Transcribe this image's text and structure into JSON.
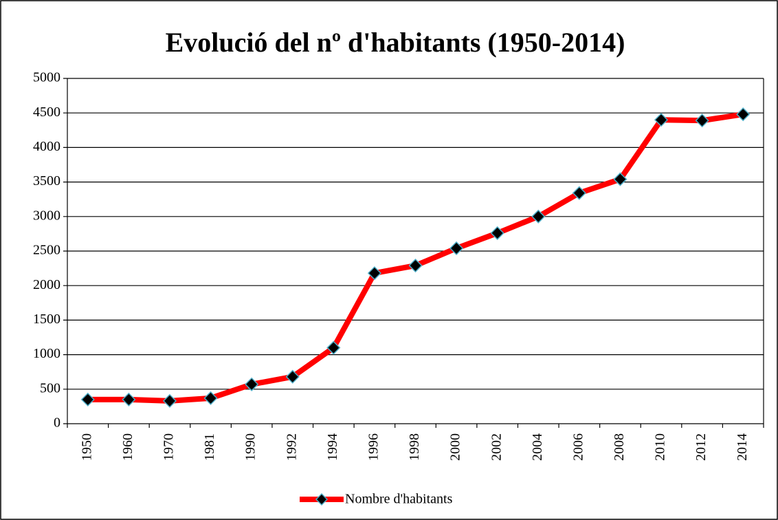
{
  "chart_data": {
    "type": "line",
    "title": "Evolució del nº d'habitants (1950-2014)",
    "categories": [
      "1950",
      "1960",
      "1970",
      "1981",
      "1990",
      "1992",
      "1994",
      "1996",
      "1998",
      "2000",
      "2002",
      "2004",
      "2006",
      "2008",
      "2010",
      "2012",
      "2014"
    ],
    "series": [
      {
        "name": "Nombre d'habitants",
        "color": "#ff0000",
        "marker_color": "#000000",
        "marker_edge": "#4bacc6",
        "values": [
          350,
          350,
          330,
          370,
          570,
          680,
          1100,
          2180,
          2290,
          2540,
          2760,
          3000,
          3340,
          3540,
          4400,
          4390,
          4480
        ]
      }
    ],
    "ylim": [
      0,
      5000
    ],
    "yticks": [
      0,
      500,
      1000,
      1500,
      2000,
      2500,
      3000,
      3500,
      4000,
      4500,
      5000
    ],
    "grid": true,
    "legend": "bottom"
  }
}
